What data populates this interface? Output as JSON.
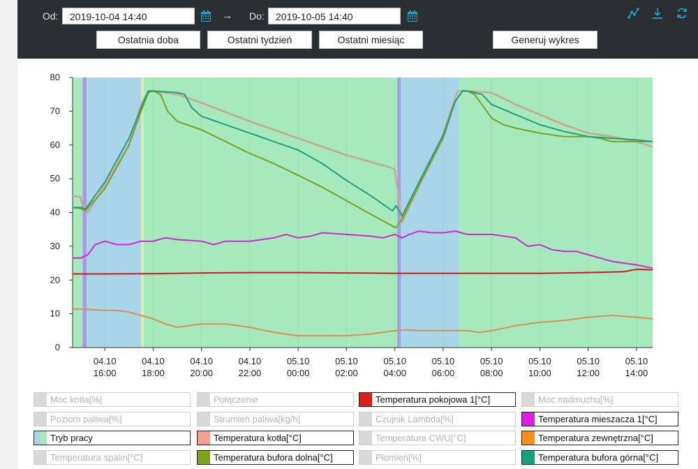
{
  "filter": {
    "from_label": "Od:",
    "from_value": "2019-10-04 14:40",
    "arrow": "→",
    "to_label": "Do:",
    "to_value": "2019-10-05 14:40",
    "quick": [
      "Ostatnia doba",
      "Ostatni tydzień",
      "Ostatni miesiąc"
    ],
    "generate": "Generuj wykres"
  },
  "toolbar_icons": [
    "line-chart-icon",
    "download-icon",
    "refresh-icon"
  ],
  "colors": {
    "topbar": "#2b2f33",
    "accent": "#1ea6c8",
    "mode_green": "#a6e9bd",
    "mode_blue": "#a9d5eb",
    "mode_purple": "#a99ae6",
    "mode_yellow": "#dcedb4"
  },
  "chart_data": {
    "type": "line",
    "ylim": [
      0,
      80
    ],
    "y_ticks": [
      "0",
      "10",
      "20",
      "30",
      "40",
      "50",
      "60",
      "70",
      "80"
    ],
    "x_start_hour": 14.6667,
    "x_end_hour": 38.6667,
    "x_ticks": [
      {
        "date": "04.10",
        "time": "16:00",
        "hour": 16
      },
      {
        "date": "04.10",
        "time": "18:00",
        "hour": 18
      },
      {
        "date": "04.10",
        "time": "20:00",
        "hour": 20
      },
      {
        "date": "04.10",
        "time": "22:00",
        "hour": 22
      },
      {
        "date": "05.10",
        "time": "00:00",
        "hour": 24
      },
      {
        "date": "05.10",
        "time": "02:00",
        "hour": 26
      },
      {
        "date": "05.10",
        "time": "04:00",
        "hour": 28
      },
      {
        "date": "05.10",
        "time": "06:00",
        "hour": 30
      },
      {
        "date": "05.10",
        "time": "08:00",
        "hour": 32
      },
      {
        "date": "05.10",
        "time": "10:00",
        "hour": 34
      },
      {
        "date": "05.10",
        "time": "12:00",
        "hour": 36
      },
      {
        "date": "05.10",
        "time": "14:00",
        "hour": 38
      }
    ],
    "mode_bands": [
      {
        "mode": "green",
        "start": 14.6667,
        "end": 15.08
      },
      {
        "mode": "purple",
        "start": 15.08,
        "end": 15.25
      },
      {
        "mode": "blue",
        "start": 15.25,
        "end": 17.5
      },
      {
        "mode": "yellow",
        "start": 17.5,
        "end": 17.6
      },
      {
        "mode": "green",
        "start": 17.6,
        "end": 28.1
      },
      {
        "mode": "purple",
        "start": 28.1,
        "end": 28.25
      },
      {
        "mode": "blue",
        "start": 28.25,
        "end": 30.65
      },
      {
        "mode": "green",
        "start": 30.65,
        "end": 38.6667
      }
    ],
    "series": [
      {
        "name": "Temperatura kotła[°C]",
        "color": "#c9a892",
        "width": 2.5,
        "x": [
          14.6667,
          15.0,
          15.1,
          15.3,
          16.0,
          17.0,
          17.5,
          17.8,
          18.0,
          19.0,
          20.0,
          22.0,
          24.0,
          26.0,
          27.0,
          27.95,
          28.0,
          28.15,
          28.3,
          29.0,
          29.5,
          30.0,
          30.3,
          30.6,
          31.0,
          32.0,
          33.0,
          34.0,
          35.0,
          36.0,
          37.0,
          38.0,
          38.6667
        ],
        "y": [
          45,
          44.5,
          41,
          40,
          48,
          60,
          72,
          76,
          76,
          75,
          72.5,
          67,
          62,
          57,
          55,
          53,
          52.5,
          45,
          37,
          48,
          55,
          63,
          70,
          76,
          76,
          75.5,
          72,
          69,
          66,
          63.5,
          62.5,
          61,
          59.5
        ]
      },
      {
        "name": "Temperatura bufora dolna[°C]",
        "color": "#7aa317",
        "width": 2,
        "x": [
          14.6667,
          15.0,
          15.2,
          15.5,
          16.0,
          17.0,
          17.5,
          17.8,
          18.0,
          18.3,
          18.6,
          19.0,
          20.0,
          21.0,
          22.0,
          23.0,
          24.0,
          25.0,
          26.0,
          27.0,
          27.9,
          28.05,
          28.3,
          29.0,
          30.0,
          30.5,
          30.8,
          31.0,
          31.3,
          31.6,
          32.0,
          32.5,
          33.0,
          34.0,
          35.0,
          36.0,
          36.5,
          37.0,
          38.0,
          38.6667
        ],
        "y": [
          41.5,
          41.2,
          40.5,
          43,
          47,
          60,
          70,
          75.5,
          76,
          75,
          70,
          67,
          64.5,
          61,
          57.5,
          54.5,
          51,
          47.5,
          43.5,
          39.5,
          36,
          35.5,
          38,
          48,
          62,
          73,
          76,
          76,
          75,
          72,
          68,
          66,
          65,
          63.5,
          62.5,
          62.5,
          62,
          61,
          61,
          61
        ]
      },
      {
        "name": "Temperatura bufora górna[°C]",
        "color": "#1f9e82",
        "width": 2,
        "x": [
          14.6667,
          15.0,
          15.2,
          15.5,
          16.0,
          17.0,
          17.5,
          17.8,
          18.0,
          19.0,
          19.3,
          19.6,
          20.0,
          21.0,
          22.0,
          23.0,
          24.0,
          25.0,
          26.0,
          27.0,
          27.9,
          28.05,
          28.3,
          29.0,
          30.0,
          30.5,
          30.8,
          31.0,
          31.6,
          32.0,
          33.0,
          34.0,
          35.0,
          36.0,
          37.0,
          38.0,
          38.6667
        ],
        "y": [
          41.5,
          41.5,
          41,
          44,
          49,
          62,
          71,
          76,
          76,
          75.5,
          75,
          71,
          68.5,
          66,
          63.5,
          61,
          58.5,
          54.5,
          49.5,
          45,
          40.5,
          42,
          39,
          49,
          63,
          73,
          76,
          76,
          75,
          72,
          69,
          66,
          64,
          62.5,
          62,
          61.5,
          61
        ]
      },
      {
        "name": "Temperatura mieszacza 1[°C]",
        "color": "#d028d0",
        "width": 2,
        "x": [
          14.6667,
          15.0,
          15.3,
          15.6,
          16.0,
          16.5,
          17.0,
          17.5,
          18.0,
          18.5,
          19.0,
          20.0,
          20.5,
          21.0,
          22.0,
          23.0,
          23.5,
          24.0,
          24.5,
          25.0,
          26.0,
          27.0,
          27.5,
          28.0,
          28.3,
          28.6,
          29.0,
          29.5,
          30.0,
          30.5,
          31.0,
          31.5,
          32.0,
          32.5,
          33.0,
          33.5,
          34.0,
          34.5,
          35.0,
          35.5,
          36.0,
          36.5,
          37.0,
          37.5,
          38.0,
          38.6667
        ],
        "y": [
          26.5,
          26.5,
          27.5,
          30.5,
          31.5,
          30.5,
          30.5,
          31.5,
          31.5,
          32.5,
          32,
          31.5,
          30.5,
          31.5,
          31.5,
          32.5,
          33.5,
          32.5,
          33,
          34,
          33.5,
          33,
          32.5,
          33.5,
          32.5,
          33.5,
          34.5,
          34,
          34,
          34.5,
          33.5,
          33.5,
          33.5,
          33,
          32.5,
          30,
          30.5,
          29,
          28.5,
          28.5,
          27.5,
          26.5,
          25.5,
          25,
          24.5,
          23.5
        ]
      },
      {
        "name": "Temperatura pokojowa 1[°C]",
        "color": "#cc1a1a",
        "width": 2,
        "x": [
          14.6667,
          16.0,
          18.0,
          20.0,
          22.0,
          24.0,
          26.0,
          28.0,
          30.0,
          32.0,
          34.0,
          36.0,
          37.5,
          38.0,
          38.6667
        ],
        "y": [
          21.8,
          21.8,
          21.9,
          22.1,
          22.2,
          22.2,
          22.1,
          22.0,
          22.0,
          22.0,
          22.0,
          22.2,
          22.5,
          23.2,
          23.0
        ]
      },
      {
        "name": "Temperatura zewnętrzna[°C]",
        "color": "#d9924d",
        "width": 2,
        "x": [
          14.6667,
          15.5,
          16.0,
          16.5,
          17.0,
          17.5,
          18.0,
          18.5,
          19.0,
          20.0,
          21.0,
          22.0,
          23.0,
          24.0,
          25.0,
          26.0,
          27.0,
          28.0,
          28.5,
          29.0,
          30.0,
          31.0,
          31.5,
          32.0,
          33.0,
          34.0,
          35.0,
          36.0,
          37.0,
          38.0,
          38.6667
        ],
        "y": [
          11.5,
          11.2,
          11,
          11,
          10.5,
          9.5,
          8.5,
          7,
          6,
          7,
          7,
          6,
          4.5,
          3.5,
          3.5,
          3.5,
          4,
          5,
          5.2,
          5,
          5,
          5,
          4.5,
          5,
          6.5,
          7.5,
          8,
          9,
          9.5,
          9,
          8.5
        ]
      }
    ]
  },
  "legend": [
    {
      "label": "Moc kotła[%]",
      "on": false,
      "color": "#d9d9d9"
    },
    {
      "label": "Połączenie",
      "on": false,
      "color": "#d9d9d9"
    },
    {
      "label": "Temperatura pokojowa 1[°C]",
      "on": true,
      "color": "#e31a1a"
    },
    {
      "label": "Moc nadmuchu[%]",
      "on": false,
      "color": "#d9d9d9"
    },
    {
      "label": "Poziom paliwa[%]",
      "on": false,
      "color": "#d9d9d9"
    },
    {
      "label": "Strumień paliwa[kg/h]",
      "on": false,
      "color": "#d9d9d9"
    },
    {
      "label": "Czujnik Lambda[%]",
      "on": false,
      "color": "#d9d9d9"
    },
    {
      "label": "Temperatura mieszacza 1[°C]",
      "on": true,
      "color": "#e01ee0"
    },
    {
      "label": "Tryb pracy",
      "on": true,
      "color": "mode"
    },
    {
      "label": "Temperatura kotła[°C]",
      "on": true,
      "color": "#f2a090"
    },
    {
      "label": "Temperatura CWU[°C]",
      "on": false,
      "color": "#d9d9d9"
    },
    {
      "label": "Temperatura zewnętrzna[°C]",
      "on": true,
      "color": "#f5901e"
    },
    {
      "label": "Temperatura spalin[°C]",
      "on": false,
      "color": "#d9d9d9"
    },
    {
      "label": "Temperatura bufora dolna[°C]",
      "on": true,
      "color": "#7aa317"
    },
    {
      "label": "Płomień[%]",
      "on": false,
      "color": "#d9d9d9"
    },
    {
      "label": "Temperatura bufora górna[°C]",
      "on": true,
      "color": "#13a07a"
    }
  ]
}
